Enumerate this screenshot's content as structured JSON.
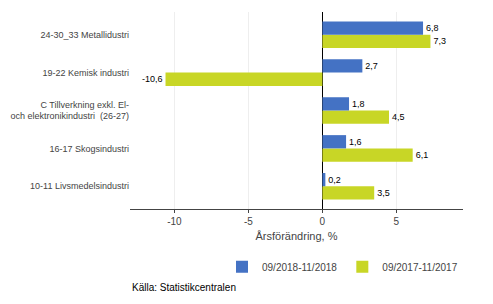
{
  "chart_data": {
    "type": "bar",
    "orientation": "horizontal",
    "categories": [
      "10-11 Livsmedelsindustri",
      "16-17 Skogsindustri",
      "C Tillverkning exkl. El-\noch elektronikindustri  (26-27)",
      "19-22 Kemisk industri",
      "24-30_33 Metallidustri"
    ],
    "series": [
      {
        "name": "09/2018-11/2018",
        "color": "#4472c4",
        "values": [
          0.2,
          1.6,
          1.8,
          2.7,
          6.8
        ],
        "value_labels": [
          "0,2",
          "1,6",
          "1,8",
          "2,7",
          "6,8"
        ]
      },
      {
        "name": "09/2017-11/2017",
        "color": "#c8d626",
        "values": [
          3.5,
          6.1,
          4.5,
          -10.6,
          7.3
        ],
        "value_labels": [
          "3,5",
          "6,1",
          "4,5",
          "-10,6",
          "7,3"
        ]
      }
    ],
    "xlabel": "Årsförändring, %",
    "xlim": [
      -13,
      9.5
    ],
    "xticks": [
      -10,
      -5,
      0,
      5
    ],
    "grid": true,
    "legend": "lower right",
    "data_labels": true,
    "annotations": [
      "Källa: Statistikcentralen"
    ]
  }
}
